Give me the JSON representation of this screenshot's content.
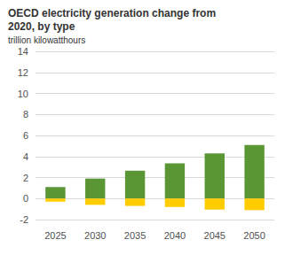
{
  "chart_data": {
    "type": "bar",
    "title": "OECD electricity generation change from 2020, by type",
    "subtitle": "trillion kilowatthours",
    "categories": [
      "2025",
      "2030",
      "2035",
      "2040",
      "2045",
      "2050"
    ],
    "series": [
      {
        "color": "#5b9635",
        "values": [
          1.1,
          1.9,
          2.65,
          3.35,
          4.3,
          5.1
        ]
      },
      {
        "color": "#ffcc00",
        "values": [
          -0.3,
          -0.6,
          -0.7,
          -0.8,
          -1.05,
          -1.1
        ]
      }
    ],
    "stacked": true,
    "ylim": [
      -2,
      14
    ],
    "yticks": [
      -2,
      0,
      2,
      4,
      6,
      8,
      10,
      12,
      14
    ],
    "grid": true
  }
}
